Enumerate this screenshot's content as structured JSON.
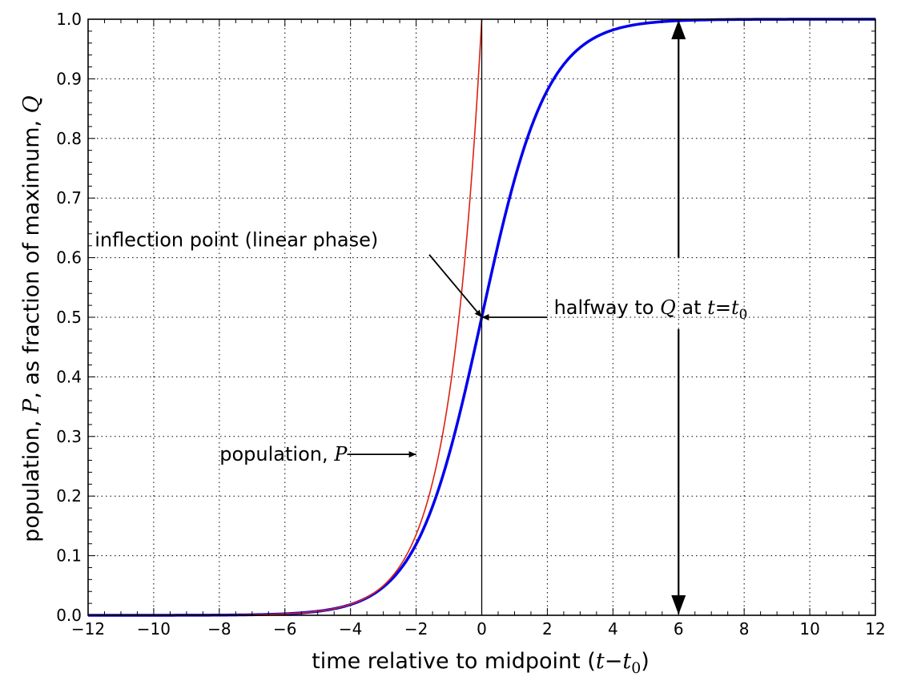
{
  "chart_data": {
    "type": "line",
    "xlim": [
      -12,
      12
    ],
    "ylim": [
      0,
      1
    ],
    "x_ticks": [
      -12,
      -10,
      -8,
      -6,
      -4,
      -2,
      0,
      2,
      4,
      6,
      8,
      10,
      12
    ],
    "x_tick_labels": [
      "−12",
      "−10",
      "−8",
      "−6",
      "−4",
      "−2",
      "0",
      "2",
      "4",
      "6",
      "8",
      "10",
      "12"
    ],
    "y_ticks": [
      0,
      0.1,
      0.2,
      0.3,
      0.4,
      0.5,
      0.6,
      0.7,
      0.8,
      0.9,
      1.0
    ],
    "y_tick_labels": [
      "0.0",
      "0.1",
      "0.2",
      "0.3",
      "0.4",
      "0.5",
      "0.6",
      "0.7",
      "0.8",
      "0.9",
      "1.0"
    ],
    "grid": true,
    "xlabel": {
      "prefix": "time relative to midpoint (",
      "t": "t",
      "minus": "−",
      "t0": "t",
      "t0_sub": "0",
      "suffix": ")"
    },
    "ylabel": {
      "prefix": "population, ",
      "P": "P",
      "mid": ", as fraction of maximum, ",
      "Q": "Q"
    },
    "series": [
      {
        "kind": "logistic",
        "color": "#0000ee",
        "x": [
          -12,
          -11,
          -10,
          -9,
          -8,
          -7,
          -6,
          -5,
          -4,
          -3,
          -2,
          -1,
          0,
          1,
          2,
          3,
          4,
          5,
          6,
          7,
          8,
          9,
          10,
          11,
          12
        ],
        "values": [
          0.0025,
          0.0041,
          0.0067,
          0.011,
          0.018,
          0.029,
          0.047,
          0.076,
          0.119,
          0.182,
          0.269,
          0.378,
          0.5,
          0.622,
          0.731,
          0.818,
          0.881,
          0.924,
          0.953,
          0.971,
          0.982,
          0.989,
          0.993,
          0.996,
          0.998
        ]
      },
      {
        "kind": "exponential",
        "color": "#dd2211",
        "x": [
          -12,
          -11,
          -10,
          -9,
          -8,
          -7,
          -6,
          -5,
          -4,
          -3,
          -2,
          -1,
          0
        ],
        "values": [
          0.0025,
          0.0041,
          0.0067,
          0.011,
          0.018,
          0.03,
          0.05,
          0.082,
          0.135,
          0.223,
          0.368,
          0.607,
          1.0
        ]
      }
    ],
    "vline": {
      "x": 0,
      "color": "#000000"
    },
    "annotations": {
      "inflection": {
        "text": "inflection point (linear phase)",
        "text_x": -11.8,
        "text_y": 0.63,
        "arrow_from": [
          -1.6,
          0.605
        ],
        "arrow_to": [
          0,
          0.5
        ]
      },
      "halfway": {
        "prefix": "halfway to ",
        "Q": "Q",
        "mid": " at ",
        "t": "t",
        "eq": "=",
        "t0": "t",
        "t0_sub": "0",
        "text_x": 2.2,
        "text_y": 0.5,
        "arrow_from": [
          2.0,
          0.5
        ],
        "arrow_to": [
          0,
          0.5
        ]
      },
      "population": {
        "prefix": "population, ",
        "P": "P",
        "text_x": -2.2,
        "text_y": 0.27,
        "arrow_from": [
          -4.1,
          0.27
        ],
        "arrow_to": [
          -2.0,
          0.27
        ]
      },
      "range_arrow": {
        "x": 6,
        "y_bottom": 0,
        "y_top": 1,
        "gap_low": 0.48,
        "gap_high": 0.6
      }
    }
  }
}
